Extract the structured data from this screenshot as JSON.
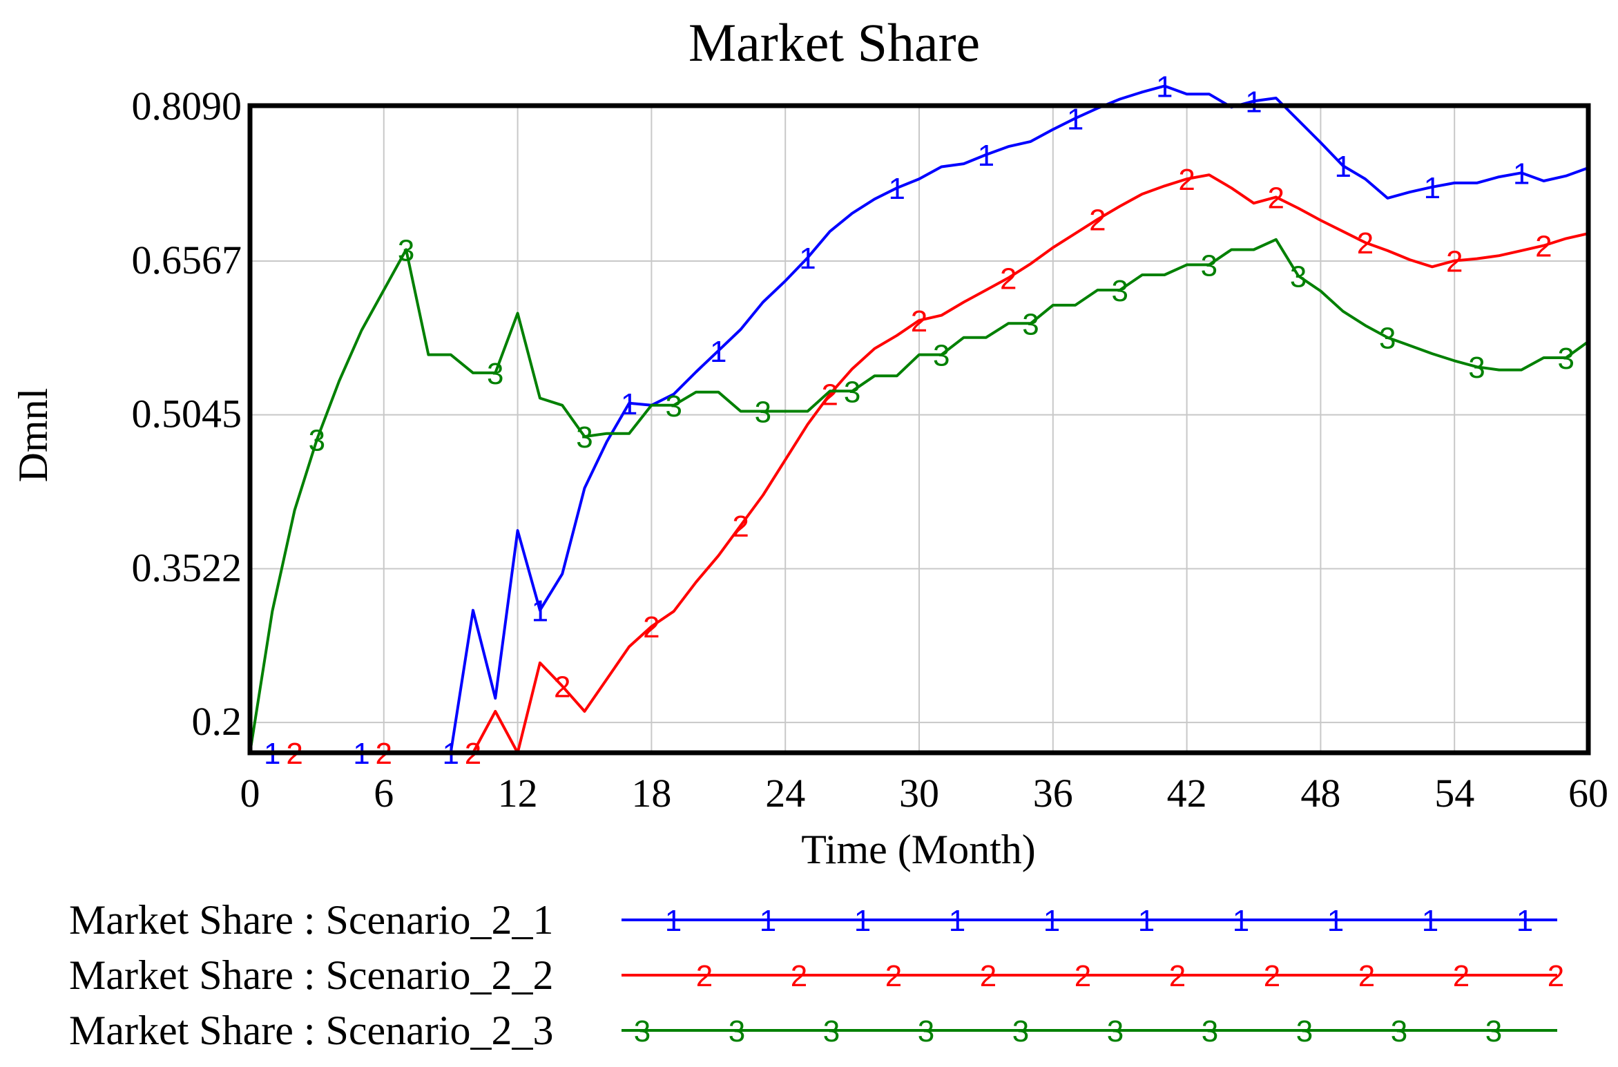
{
  "chart_data": {
    "type": "line",
    "title": "Market Share",
    "xlabel": "Time (Month)",
    "ylabel": "Dmnl",
    "xlim": [
      0,
      60
    ],
    "ylim": [
      0.17,
      0.8105
    ],
    "x_ticks": [
      "0",
      "6",
      "12",
      "18",
      "24",
      "30",
      "36",
      "42",
      "48",
      "54",
      "60"
    ],
    "y_ticks": [
      {
        "value": 0.809,
        "label": "0.8090"
      },
      {
        "value": 0.6567,
        "label": "0.6567"
      },
      {
        "value": 0.5045,
        "label": "0.5045"
      },
      {
        "value": 0.3522,
        "label": "0.3522"
      },
      {
        "value": 0.2,
        "label": "0.2"
      }
    ],
    "grid": true,
    "legend_position": "bottom",
    "series": [
      {
        "name": "Market Share : Scenario_2_1",
        "marker": "1",
        "color": "#0000ff",
        "x": [
          0,
          1,
          2,
          3,
          4,
          5,
          6,
          7,
          8,
          9,
          10,
          11,
          12,
          13,
          14,
          15,
          16,
          17,
          18,
          19,
          20,
          21,
          22,
          23,
          24,
          25,
          26,
          27,
          28,
          29,
          30,
          31,
          32,
          33,
          34,
          35,
          36,
          37,
          38,
          39,
          40,
          41,
          42,
          43,
          44,
          45,
          46,
          47,
          48,
          49,
          50,
          51,
          52,
          53,
          54,
          55,
          56,
          57,
          58,
          59,
          60
        ],
        "values": [
          0.17,
          0.17,
          0.17,
          0.17,
          0.17,
          0.17,
          0.17,
          0.17,
          0.17,
          0.17,
          0.311,
          0.224,
          0.39,
          0.311,
          0.347,
          0.432,
          0.478,
          0.516,
          0.514,
          0.525,
          0.547,
          0.568,
          0.589,
          0.616,
          0.637,
          0.66,
          0.686,
          0.704,
          0.718,
          0.729,
          0.738,
          0.75,
          0.753,
          0.762,
          0.77,
          0.775,
          0.787,
          0.798,
          0.808,
          0.817,
          0.824,
          0.83,
          0.822,
          0.822,
          0.809,
          0.815,
          0.818,
          0.796,
          0.774,
          0.751,
          0.738,
          0.719,
          0.725,
          0.73,
          0.734,
          0.734,
          0.74,
          0.744,
          0.736,
          0.741,
          0.749
        ]
      },
      {
        "name": "Market Share : Scenario_2_2",
        "marker": "2",
        "color": "#ff0000",
        "x": [
          0,
          1,
          2,
          3,
          4,
          5,
          6,
          7,
          8,
          9,
          10,
          11,
          12,
          13,
          14,
          15,
          16,
          17,
          18,
          19,
          20,
          21,
          22,
          23,
          24,
          25,
          26,
          27,
          28,
          29,
          30,
          31,
          32,
          33,
          34,
          35,
          36,
          37,
          38,
          39,
          40,
          41,
          42,
          43,
          44,
          45,
          46,
          47,
          48,
          49,
          50,
          51,
          52,
          53,
          54,
          55,
          56,
          57,
          58,
          59,
          60
        ],
        "values": [
          0.17,
          0.17,
          0.17,
          0.17,
          0.17,
          0.17,
          0.17,
          0.17,
          0.17,
          0.17,
          0.17,
          0.211,
          0.17,
          0.259,
          0.236,
          0.211,
          0.243,
          0.275,
          0.295,
          0.31,
          0.339,
          0.365,
          0.395,
          0.425,
          0.46,
          0.495,
          0.525,
          0.55,
          0.57,
          0.583,
          0.598,
          0.603,
          0.616,
          0.628,
          0.64,
          0.654,
          0.67,
          0.684,
          0.698,
          0.711,
          0.723,
          0.731,
          0.738,
          0.742,
          0.729,
          0.714,
          0.72,
          0.709,
          0.697,
          0.686,
          0.675,
          0.667,
          0.658,
          0.651,
          0.657,
          0.659,
          0.662,
          0.667,
          0.672,
          0.679,
          0.684
        ]
      },
      {
        "name": "Market Share : Scenario_2_3",
        "marker": "3",
        "color": "#008000",
        "x": [
          0,
          1,
          2,
          3,
          4,
          5,
          6,
          7,
          8,
          9,
          10,
          11,
          12,
          13,
          14,
          15,
          16,
          17,
          18,
          19,
          20,
          21,
          22,
          23,
          24,
          25,
          26,
          27,
          28,
          29,
          30,
          31,
          32,
          33,
          34,
          35,
          36,
          37,
          38,
          39,
          40,
          41,
          42,
          43,
          44,
          45,
          46,
          47,
          48,
          49,
          50,
          51,
          52,
          53,
          54,
          55,
          56,
          57,
          58,
          59,
          60
        ],
        "values": [
          0.17,
          0.31,
          0.41,
          0.48,
          0.538,
          0.588,
          0.628,
          0.668,
          0.564,
          0.564,
          0.546,
          0.546,
          0.605,
          0.521,
          0.514,
          0.483,
          0.486,
          0.486,
          0.514,
          0.514,
          0.527,
          0.527,
          0.508,
          0.508,
          0.508,
          0.508,
          0.528,
          0.528,
          0.543,
          0.543,
          0.564,
          0.564,
          0.581,
          0.581,
          0.595,
          0.595,
          0.613,
          0.613,
          0.628,
          0.628,
          0.643,
          0.643,
          0.653,
          0.653,
          0.668,
          0.668,
          0.678,
          0.642,
          0.627,
          0.607,
          0.593,
          0.581,
          0.573,
          0.565,
          0.558,
          0.552,
          0.549,
          0.549,
          0.561,
          0.561,
          0.577
        ]
      }
    ]
  }
}
